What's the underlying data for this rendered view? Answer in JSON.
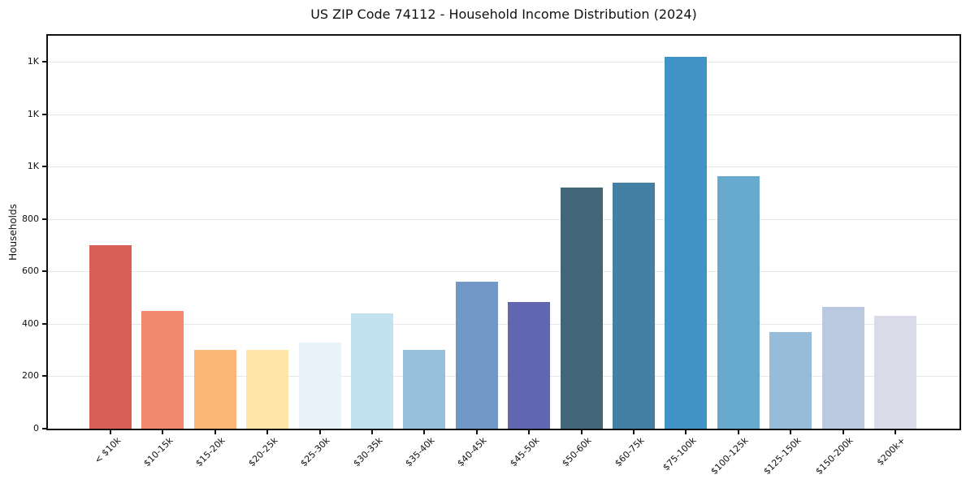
{
  "chart_data": {
    "type": "bar",
    "title": "US ZIP Code 74112 - Household Income Distribution (2024)",
    "xlabel": "",
    "ylabel": "Households",
    "categories": [
      "< $10k",
      "$10-15k",
      "$15-20k",
      "$20-25k",
      "$25-30k",
      "$30-35k",
      "$35-40k",
      "$40-45k",
      "$45-50k",
      "$50-60k",
      "$60-75k",
      "$75-100k",
      "$100-125k",
      "$125-150k",
      "$150-200k",
      "$200k+"
    ],
    "values": [
      700,
      450,
      300,
      300,
      330,
      440,
      300,
      560,
      485,
      920,
      940,
      1420,
      965,
      370,
      465,
      430
    ],
    "bar_colors": [
      "#d4554e",
      "#f18465",
      "#fab26f",
      "#fde4a1",
      "#e6f2f8",
      "#bfe0ee",
      "#90bcda",
      "#6992c3",
      "#585baa",
      "#355d70",
      "#37789d",
      "#368cc1",
      "#5ea5ca",
      "#90b8d7",
      "#b6c6dd",
      "#d8d9e7"
    ],
    "ylim": [
      0,
      1500
    ],
    "yticks": [
      {
        "value": 0,
        "label": "0"
      },
      {
        "value": 200,
        "label": "200"
      },
      {
        "value": 400,
        "label": "400"
      },
      {
        "value": 600,
        "label": "600"
      },
      {
        "value": 800,
        "label": "800"
      },
      {
        "value": 1000,
        "label": "1K"
      },
      {
        "value": 1200,
        "label": "1K"
      },
      {
        "value": 1400,
        "label": "1K"
      }
    ],
    "grid": "horizontal",
    "grid_color": "#e7e7ea",
    "axis_color": "#111111",
    "text_color": "#111111",
    "legend": "none"
  }
}
